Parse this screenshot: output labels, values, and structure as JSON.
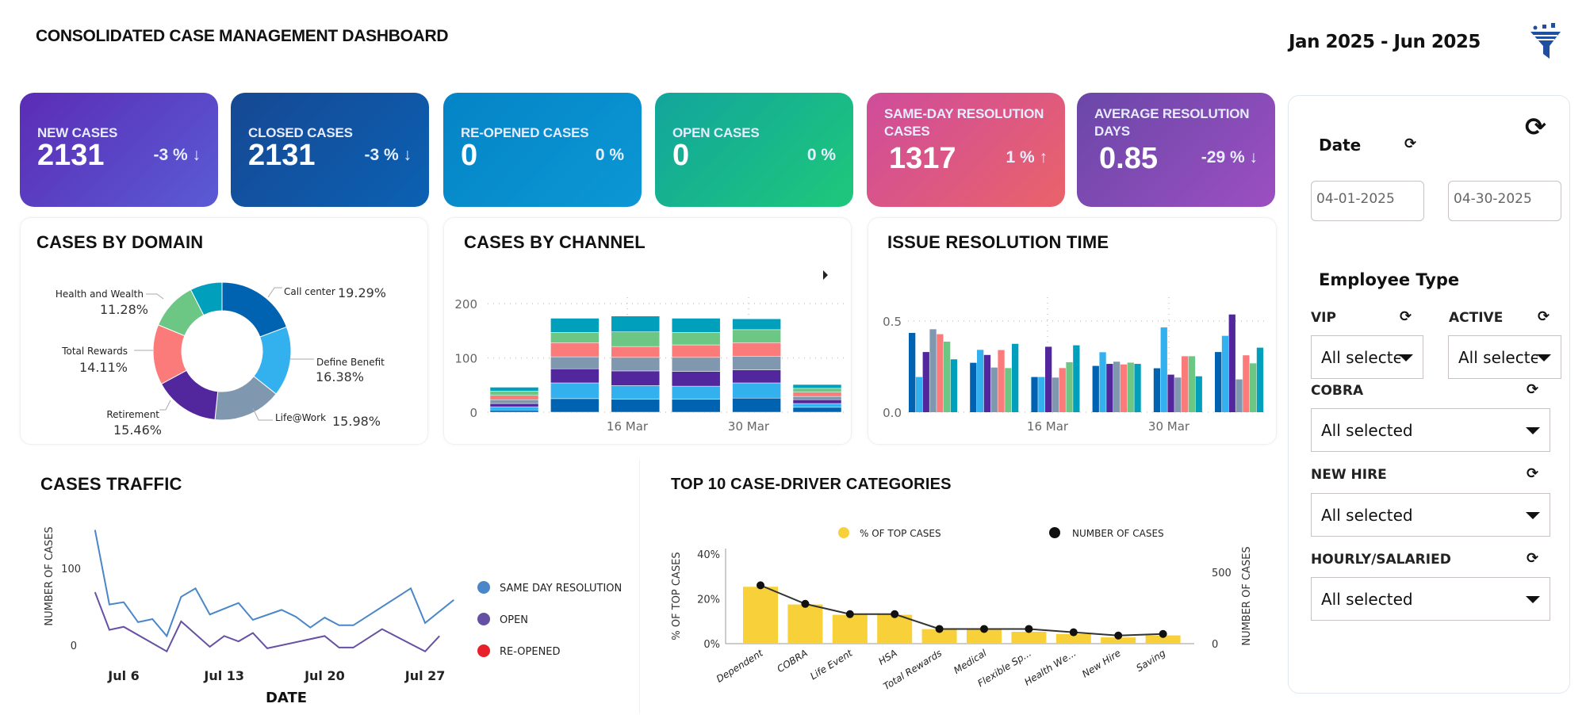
{
  "header": {
    "title": "CONSOLIDATED CASE MANAGEMENT DASHBOARD",
    "date_range": "Jan 2025 - Jun 2025",
    "filter_icon": "funnel-filter-icon"
  },
  "kpis": [
    {
      "label": "NEW CASES",
      "value": "2131",
      "change": "-3 %",
      "trend": "down",
      "colors": [
        "#5b2cb5",
        "#5a5bd4"
      ]
    },
    {
      "label": "CLOSED CASES",
      "value": "2131",
      "change": "-3 %",
      "trend": "down",
      "colors": [
        "#164893",
        "#0b61b3"
      ]
    },
    {
      "label": "RE-OPENED CASES",
      "value": "0",
      "change": "0 %",
      "trend": "none",
      "colors": [
        "#0484c6",
        "#0c97d4"
      ]
    },
    {
      "label": "OPEN CASES",
      "value": "0",
      "change": "0 %",
      "trend": "none",
      "colors": [
        "#12a59d",
        "#1ec87a"
      ]
    },
    {
      "label": "SAME-DAY RESOLUTION CASES",
      "value": "1317",
      "change": "1 %",
      "trend": "up",
      "colors": [
        "#cf4c9b",
        "#e9636a"
      ]
    },
    {
      "label": "AVERAGE RESOLUTION DAYS",
      "value": "0.85",
      "change": "-29 %",
      "trend": "down",
      "colors": [
        "#6a47a8",
        "#9c4fc1"
      ]
    }
  ],
  "arrows": {
    "up": "↑",
    "down": "↓",
    "none": ""
  },
  "sidebar": {
    "date_label": "Date",
    "start_date": "04-01-2025",
    "end_date": "04-30-2025",
    "employee_type_label": "Employee Type",
    "filters": [
      {
        "label": "VIP",
        "value": "All selected"
      },
      {
        "label": "ACTIVE",
        "value": "All selected"
      },
      {
        "label": "COBRA",
        "value": "All selected"
      },
      {
        "label": "NEW HIRE",
        "value": "All selected"
      },
      {
        "label": "HOURLY/SALARIED",
        "value": "All selected"
      }
    ]
  },
  "chart_data": [
    {
      "id": "domain",
      "type": "pie",
      "title": "CASES BY DOMAIN",
      "donut": true,
      "slices": [
        {
          "label": "Call center",
          "value": 19.29,
          "display": "19.29%",
          "color": "#0063b1"
        },
        {
          "label": "Define Benefit",
          "value": 16.38,
          "display": "16.38%",
          "color": "#33b1ef"
        },
        {
          "label": "Life@Work",
          "value": 15.98,
          "display": "15.98%",
          "color": "#7f97af"
        },
        {
          "label": "Retirement",
          "value": 15.46,
          "display": "15.46%",
          "color": "#52279e"
        },
        {
          "label": "Total Rewards",
          "value": 14.11,
          "display": "14.11%",
          "color": "#fb7b7b"
        },
        {
          "label": "Health and Wealth",
          "value": 11.28,
          "display": "11.28%",
          "color": "#6cc785"
        },
        {
          "label": "",
          "value": 7.5,
          "display": "",
          "color": "#009fbb"
        }
      ]
    },
    {
      "id": "channel",
      "type": "bar",
      "stacked": true,
      "title": "CASES BY CHANNEL",
      "ylim": [
        0,
        200
      ],
      "yticks": [
        "0",
        "100",
        "200"
      ],
      "xtick_labels": [
        "16 Mar",
        "30 Mar"
      ],
      "grid": true,
      "colors": [
        "#0063b1",
        "#33b1ef",
        "#52279e",
        "#7f97af",
        "#fb7b7b",
        "#6cc785",
        "#009fbb"
      ],
      "stacks": [
        [
          4,
          6,
          6,
          7,
          8,
          8,
          7
        ],
        [
          25,
          29,
          26,
          22,
          26,
          19,
          26
        ],
        [
          24,
          25,
          27,
          25,
          20,
          27,
          29
        ],
        [
          24,
          24,
          27,
          26,
          23,
          23,
          26
        ],
        [
          26,
          28,
          24,
          25,
          25,
          24,
          20
        ],
        [
          9,
          7,
          7,
          6,
          8,
          7,
          7
        ]
      ]
    },
    {
      "id": "resolution",
      "type": "bar",
      "grouped": true,
      "title": "ISSUE RESOLUTION TIME",
      "ylim": [
        0,
        0.55
      ],
      "yticks": [
        "0.0",
        "0.5"
      ],
      "xtick_labels": [
        "16 Mar",
        "30 Mar"
      ],
      "grid": true,
      "colors": [
        "#0063b1",
        "#33b1ef",
        "#52279e",
        "#7f97af",
        "#fb7b7b",
        "#6cc785",
        "#009fbb"
      ],
      "groups": [
        [
          0.435,
          0.193,
          0.33,
          0.455,
          0.428,
          0.387,
          0.29
        ],
        [
          0.271,
          0.342,
          0.314,
          0.245,
          0.341,
          0.242,
          0.375
        ],
        [
          0.193,
          0.193,
          0.359,
          0.19,
          0.242,
          0.274,
          0.367
        ],
        [
          0.254,
          0.329,
          0.265,
          0.277,
          0.262,
          0.272,
          0.265
        ],
        [
          0.241,
          0.465,
          0.206,
          0.19,
          0.307,
          0.307,
          0.197
        ],
        [
          0.33,
          0.419,
          0.536,
          0.18,
          0.312,
          0.268,
          0.354
        ]
      ]
    },
    {
      "id": "traffic",
      "type": "line",
      "title": "CASES TRAFFIC",
      "xlabel": "DATE",
      "ylabel": "NUMBER OF CASES",
      "yticks": [
        "0",
        "100"
      ],
      "xtick_labels": [
        "Jul 6",
        "Jul 13",
        "Jul 20",
        "Jul 27"
      ],
      "legend": "right",
      "series": [
        {
          "name": "SAME DAY RESOLUTION",
          "color": "#4a86c8",
          "points": [
            [
              "Jul 4",
              150
            ],
            [
              "Jul 5",
              53
            ],
            [
              "Jul 6",
              56
            ],
            [
              "Jul 7",
              30
            ],
            [
              "Jul 8",
              34
            ],
            [
              "Jul 9",
              12
            ],
            [
              "Jul 10",
              63
            ],
            [
              "Jul 11",
              74
            ],
            [
              "Jul 12",
              40
            ],
            [
              "Jul 14",
              55
            ],
            [
              "Jul 15",
              33
            ],
            [
              "Jul 17",
              46
            ],
            [
              "Jul 18",
              37
            ],
            [
              "Jul 19",
              23
            ],
            [
              "Jul 20",
              36
            ],
            [
              "Jul 21",
              26
            ],
            [
              "Jul 22",
              26
            ],
            [
              "Jul 26",
              74
            ],
            [
              "Jul 27",
              29
            ],
            [
              "Jul 29",
              59
            ]
          ]
        },
        {
          "name": "OPEN",
          "color": "#6650a4",
          "points": [
            [
              "Jul 4",
              69
            ],
            [
              "Jul 5",
              20
            ],
            [
              "Jul 6",
              24
            ],
            [
              "Jul 9",
              -8
            ],
            [
              "Jul 10",
              31
            ],
            [
              "Jul 12",
              -2
            ],
            [
              "Jul 13",
              12
            ],
            [
              "Jul 14",
              5
            ],
            [
              "Jul 15",
              16
            ],
            [
              "Jul 16",
              -4
            ],
            [
              "Jul 20",
              12
            ],
            [
              "Jul 21",
              -3
            ],
            [
              "Jul 22",
              -3
            ],
            [
              "Jul 24",
              21
            ],
            [
              "Jul 27",
              -8
            ],
            [
              "Jul 28",
              12
            ]
          ]
        },
        {
          "name": "RE-OPENED",
          "color": "#e8202a",
          "points": []
        }
      ]
    },
    {
      "id": "top10",
      "type": "bar",
      "title": "TOP 10 CASE-DRIVER CATEGORIES",
      "ylabel": "% OF TOP CASES",
      "y2label": "NUMBER OF CASES",
      "yticks": [
        "0%",
        "20%",
        "40%"
      ],
      "y2ticks": [
        "0",
        "500"
      ],
      "legend": "top",
      "categories": [
        "Dependent",
        "COBRA",
        "Life Event",
        "HSA",
        "Total Rewards",
        "Medical",
        "Flexible Sp...",
        "Health We...",
        "New Hire",
        "Saving"
      ],
      "series": [
        {
          "name": "% OF TOP CASES",
          "type": "bar",
          "color": "#f8d03a",
          "values": [
            25.4,
            17.5,
            12.9,
            12.9,
            6.5,
            6.3,
            5.3,
            4.3,
            2.8,
            3.7
          ]
        },
        {
          "name": "NUMBER OF CASES",
          "type": "line",
          "color": "#111111",
          "values": [
            409,
            279,
            207,
            207,
            103,
            103,
            103,
            80,
            57,
            68
          ]
        }
      ]
    }
  ]
}
